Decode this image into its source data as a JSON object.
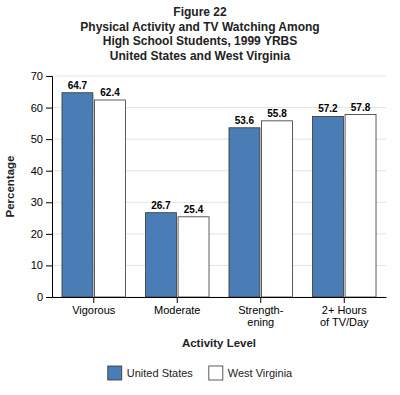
{
  "chart_data": {
    "type": "bar",
    "title": "Figure 22\nPhysical Activity and TV Watching Among\nHigh School Students, 1999 YRBS\nUnited States and West Virginia",
    "x_label": "Activity Level",
    "y_label": "Percentage",
    "categories": [
      "Vigorous",
      "Moderate",
      "Strength-\nening",
      "2+ Hours\nof TV/Day"
    ],
    "series": [
      {
        "name": "United States",
        "color": "#4A7DB5",
        "values": [
          64.7,
          26.7,
          53.6,
          57.2
        ]
      },
      {
        "name": "West Virginia",
        "color": "#FFFFFF",
        "values": [
          62.4,
          25.4,
          55.8,
          57.8
        ]
      }
    ],
    "ylim": [
      0,
      70
    ],
    "yticks": [
      0,
      10,
      20,
      30,
      40,
      50,
      60,
      70
    ],
    "grid": true,
    "legend": "bottom",
    "data_labels": true
  }
}
